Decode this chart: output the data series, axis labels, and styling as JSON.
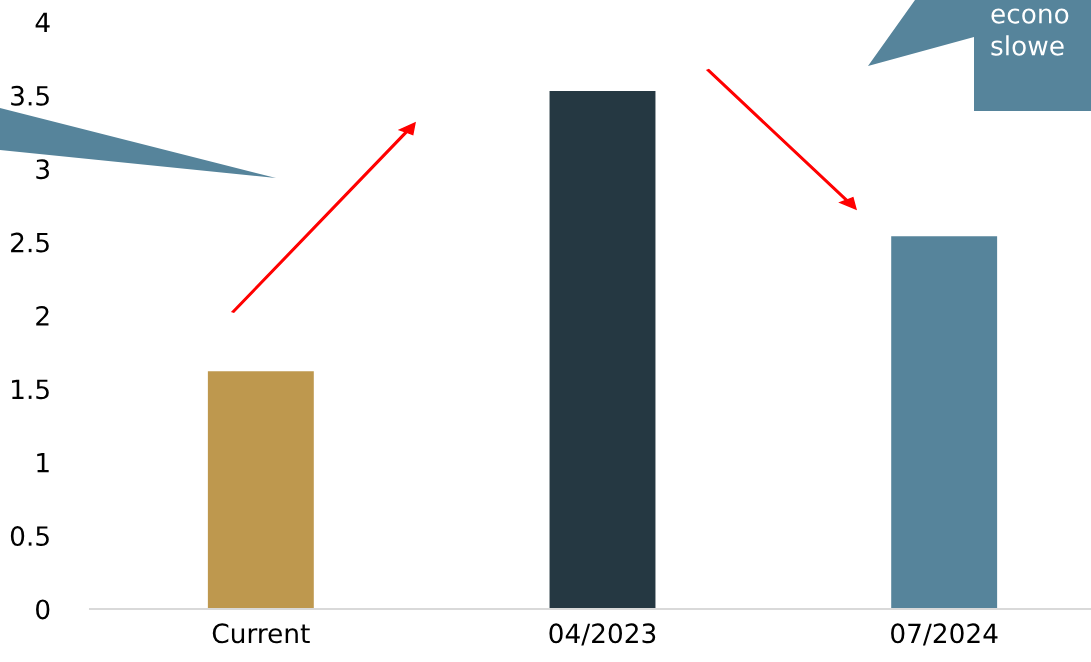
{
  "chart_data": {
    "type": "bar",
    "categories": [
      "Current",
      "04/2023",
      "07/2024"
    ],
    "values": [
      1.62,
      3.53,
      2.54
    ],
    "colors": [
      "#be984e",
      "#253842",
      "#56849b"
    ],
    "ylim": [
      0,
      4
    ],
    "yticks": [
      0,
      0.5,
      1,
      1.5,
      2,
      2.5,
      3,
      3.5,
      4
    ],
    "grid": false,
    "annotations": [
      "econo",
      "slowe"
    ]
  }
}
